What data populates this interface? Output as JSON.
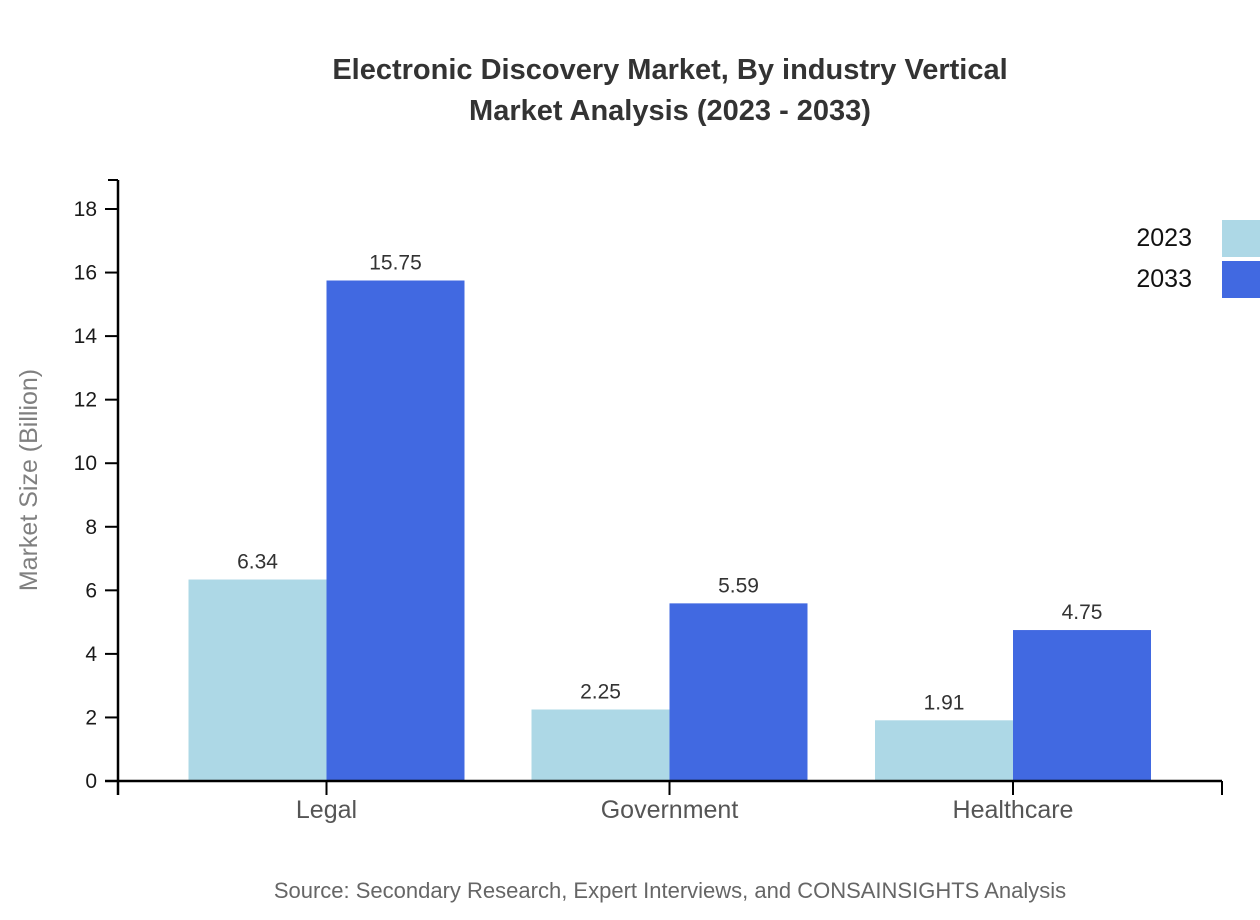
{
  "title": {
    "line1": "Electronic Discovery Market, By industry Vertical",
    "line2": "Market Analysis (2023 - 2033)"
  },
  "source": "Source: Secondary Research, Expert Interviews, and CONSAINSIGHTS Analysis",
  "chart_data": {
    "type": "bar",
    "title": "Electronic Discovery Market, By industry Vertical Market Analysis (2023 - 2033)",
    "categories": [
      "Legal",
      "Government",
      "Healthcare"
    ],
    "series": [
      {
        "name": "2023",
        "color": "#ADD8E6",
        "values": [
          6.34,
          2.25,
          1.91
        ]
      },
      {
        "name": "2033",
        "color": "#4169E1",
        "values": [
          15.75,
          5.59,
          4.75
        ]
      }
    ],
    "xlabel": "",
    "ylabel": "Market Size (Billion)",
    "ylim": [
      0,
      18
    ],
    "ytick_step": 2,
    "grid": "off",
    "legend_position": "top-right",
    "value_labels": "on",
    "colors": {
      "axis": "#000000",
      "tick_label": "#1a1a1a",
      "category_label": "#555555",
      "axis_title": "#808080",
      "value_label": "#333333",
      "title": "#333333",
      "source": "#666666"
    }
  }
}
